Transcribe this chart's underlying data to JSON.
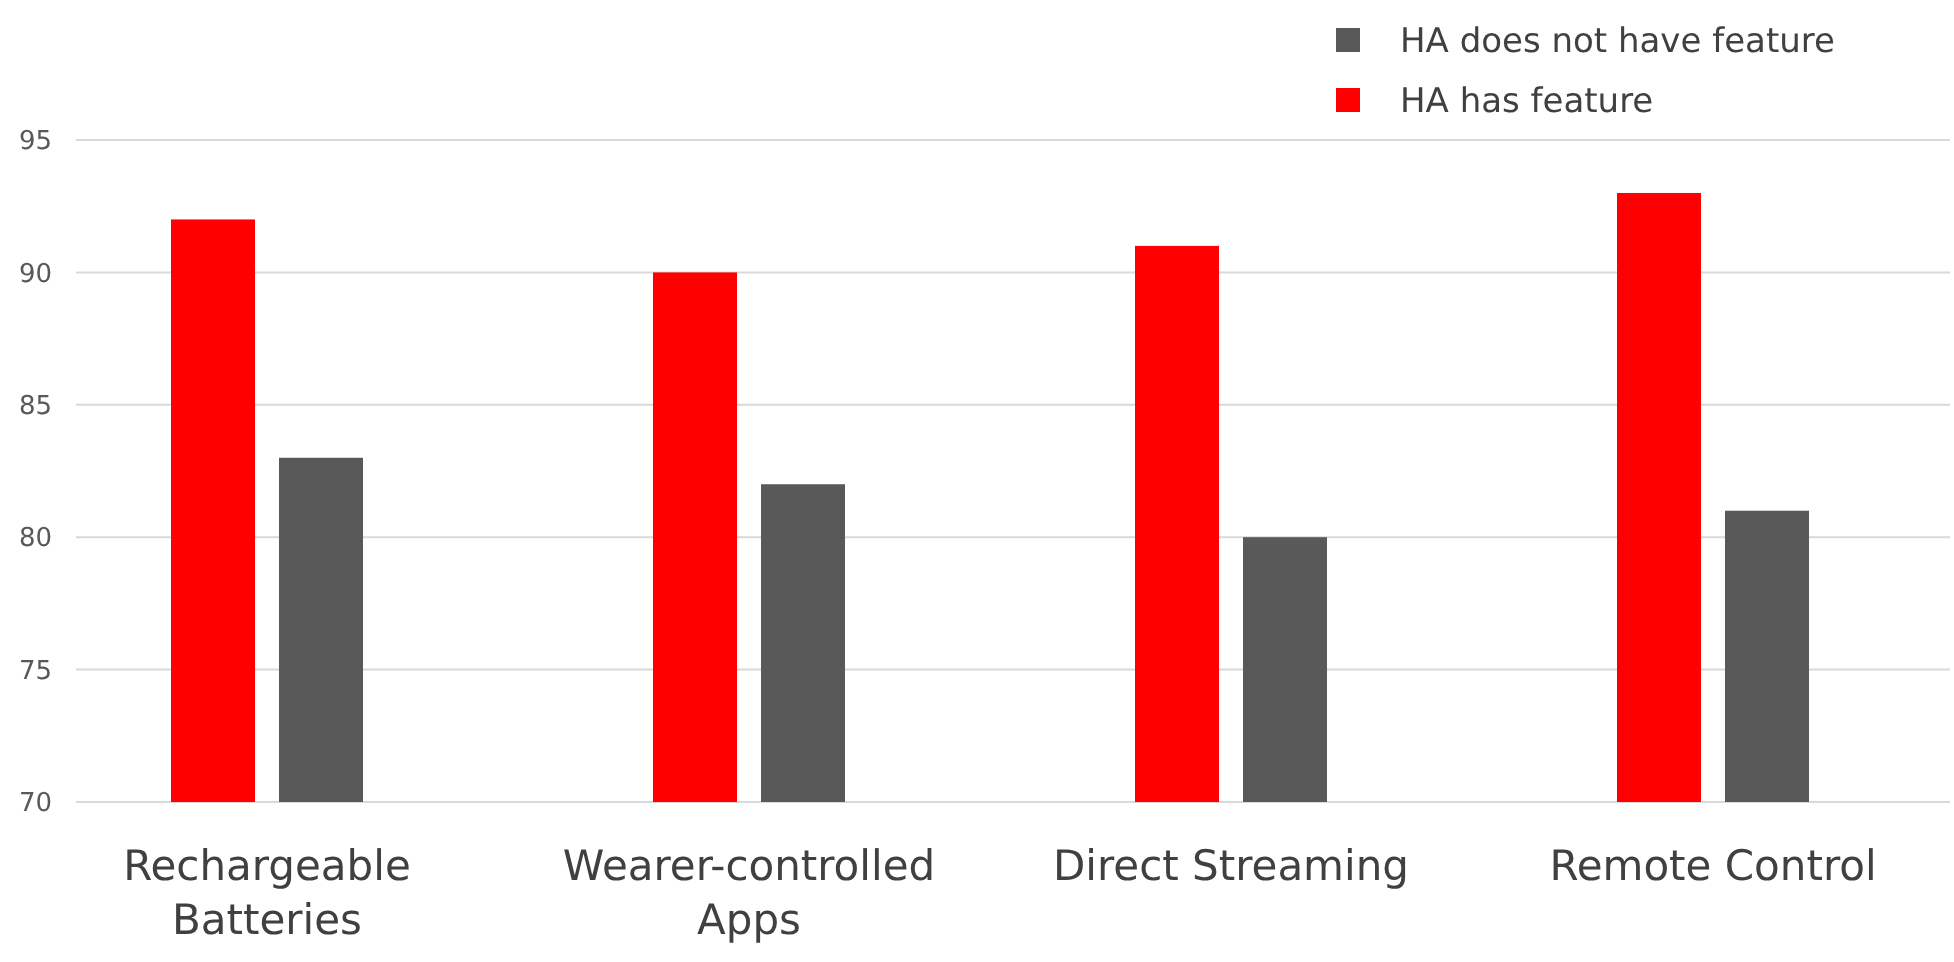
{
  "chart_data": {
    "type": "bar",
    "categories": [
      "Rechargeable Batteries",
      "Wearer-controlled Apps",
      "Direct Streaming",
      "Remote Control"
    ],
    "series": [
      {
        "name": "HA has feature",
        "color": "#ff0000",
        "values": [
          92,
          90,
          91,
          93
        ]
      },
      {
        "name": "HA does not have feature",
        "color": "#595959",
        "values": [
          83,
          82,
          80,
          81
        ]
      }
    ],
    "ylim": [
      70,
      95
    ],
    "yticks": [
      70,
      75,
      80,
      85,
      90,
      95
    ],
    "grid": "y",
    "legend": "top right"
  }
}
